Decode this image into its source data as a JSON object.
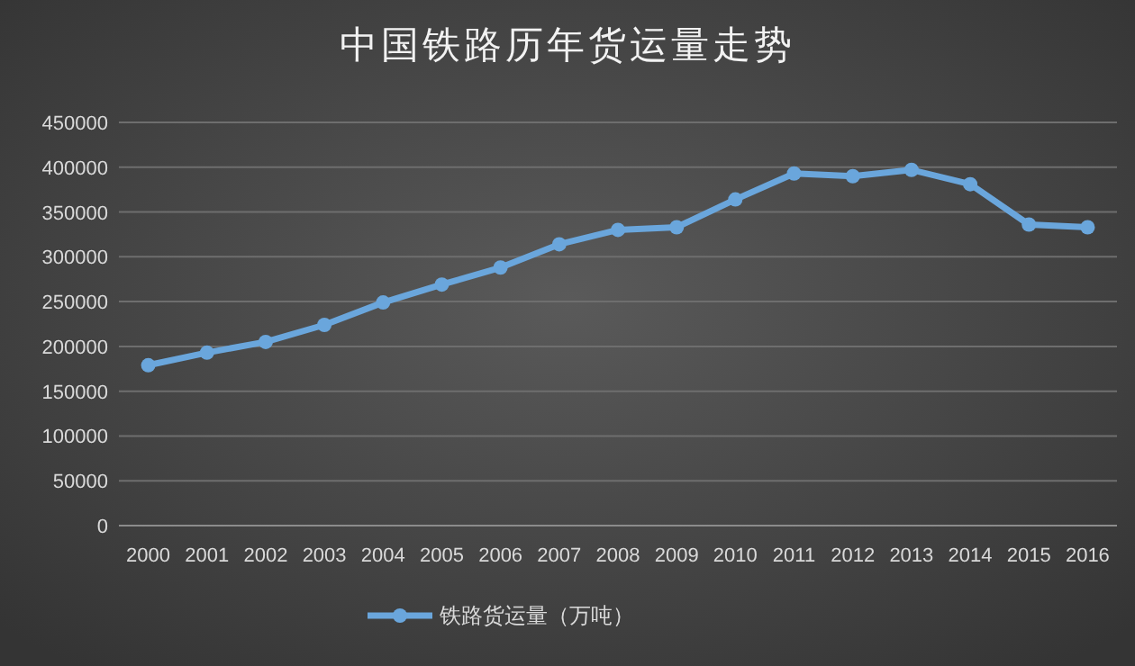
{
  "chart_data": {
    "type": "line",
    "title": "中国铁路历年货运量走势",
    "categories": [
      "2000",
      "2001",
      "2002",
      "2003",
      "2004",
      "2005",
      "2006",
      "2007",
      "2008",
      "2009",
      "2010",
      "2011",
      "2012",
      "2013",
      "2014",
      "2015",
      "2016"
    ],
    "series": [
      {
        "name": "铁路货运量（万吨）",
        "color": "#6aa6dc",
        "values": [
          179000,
          193000,
          205000,
          224000,
          249000,
          269000,
          288000,
          314000,
          330000,
          333000,
          364000,
          393000,
          390000,
          397000,
          381000,
          336000,
          333000
        ]
      }
    ],
    "ylim": [
      0,
      450000
    ],
    "yticks": [
      0,
      50000,
      100000,
      150000,
      200000,
      250000,
      300000,
      350000,
      400000,
      450000
    ],
    "grid": "y",
    "legend": "bottom",
    "marker": "circle",
    "line_style": "solid"
  }
}
